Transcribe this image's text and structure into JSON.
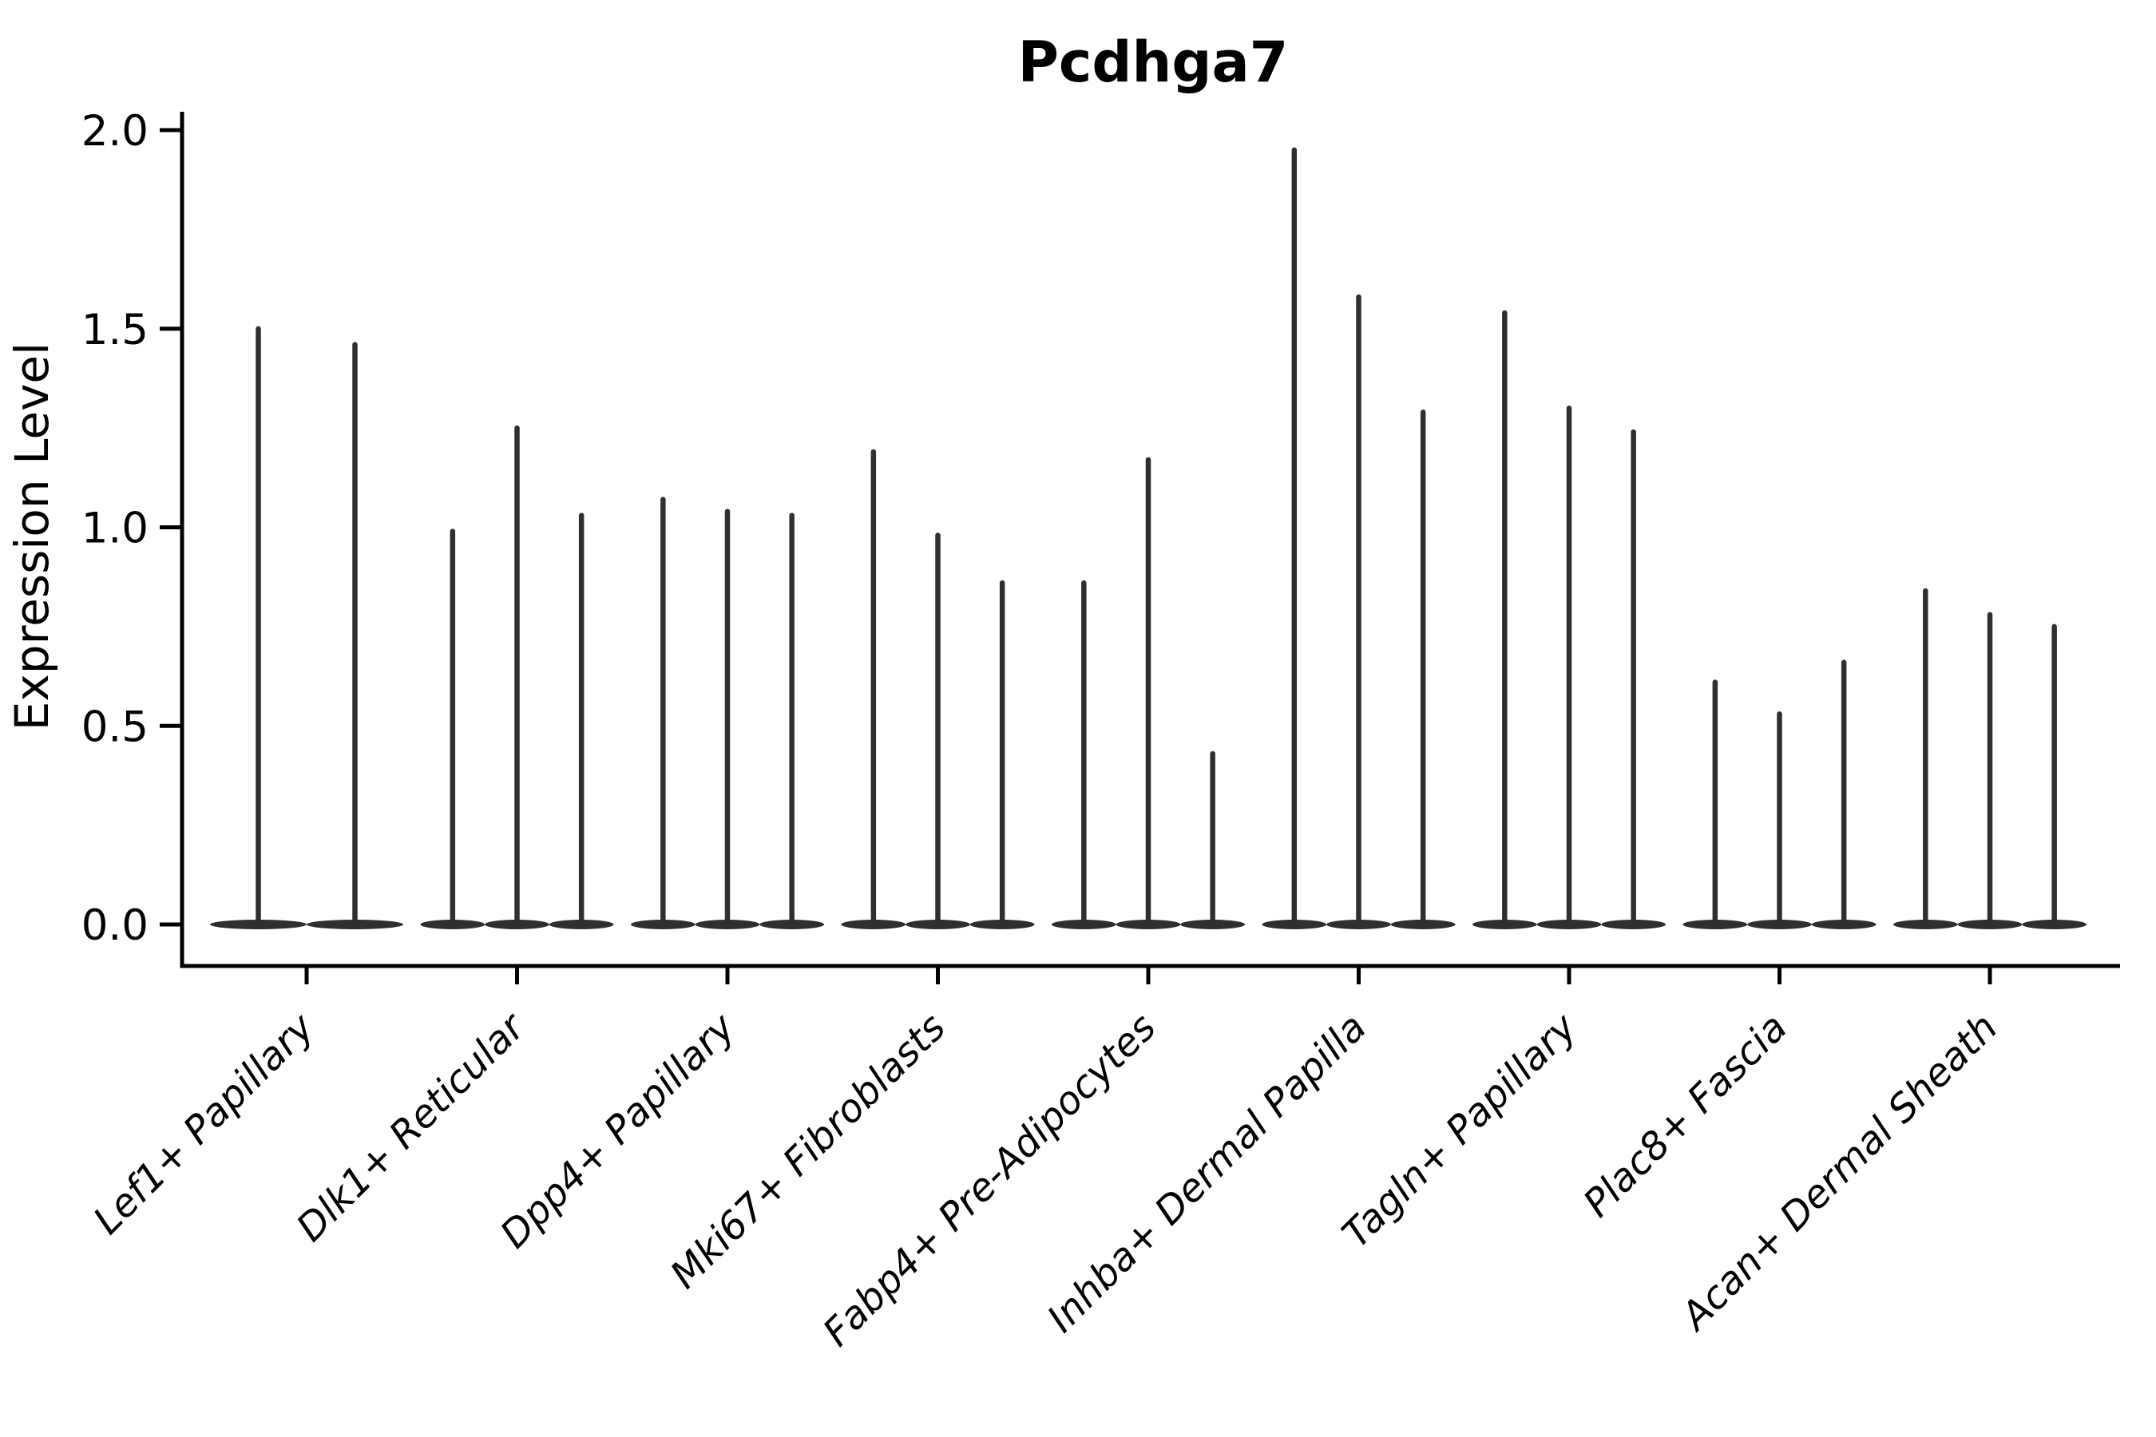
{
  "title": "Pcdhga7",
  "y_axis": {
    "label": "Expression Level",
    "tick_labels": [
      "0.0",
      "0.5",
      "1.0",
      "1.5",
      "2.0"
    ],
    "tick_values": [
      0.0,
      0.5,
      1.0,
      1.5,
      2.0
    ],
    "min": 0.0,
    "max": 2.0
  },
  "chart_data": {
    "type": "violin",
    "title": "Pcdhga7",
    "xlabel": "",
    "ylabel": "Expression Level",
    "ylim": [
      0.0,
      2.0
    ],
    "yticks": [
      0.0,
      0.5,
      1.0,
      1.5,
      2.0
    ],
    "ytick_labels": [
      "0.0",
      "0.5",
      "1.0",
      "1.5",
      "2.0"
    ],
    "grid": false,
    "legend": "none",
    "description": "Grouped violin plot; each violin is a wide flat density bulge at expression 0 with a thin spike reaching the maximum expression value.",
    "categories": [
      "Lef1+ Papillary",
      "Dlk1+ Reticular",
      "Dpp4+ Papillary",
      "Mki67+ Fibroblasts",
      "Fabp4+ Pre-Adipocytes",
      "Inhba+ Dermal Papilla",
      "Tagln+ Papillary",
      "Plac8+ Fascia",
      "Acan+ Dermal Sheath"
    ],
    "series": [
      {
        "category": "Lef1+ Papillary",
        "violin_maxima": [
          1.5,
          1.46
        ]
      },
      {
        "category": "Dlk1+ Reticular",
        "violin_maxima": [
          0.99,
          1.25,
          1.03
        ]
      },
      {
        "category": "Dpp4+ Papillary",
        "violin_maxima": [
          1.07,
          1.04,
          1.03
        ]
      },
      {
        "category": "Mki67+ Fibroblasts",
        "violin_maxima": [
          1.19,
          0.98,
          0.86
        ]
      },
      {
        "category": "Fabp4+ Pre-Adipocytes",
        "violin_maxima": [
          0.86,
          1.17,
          0.43
        ]
      },
      {
        "category": "Inhba+ Dermal Papilla",
        "violin_maxima": [
          1.95,
          1.58,
          1.29
        ]
      },
      {
        "category": "Tagln+ Papillary",
        "violin_maxima": [
          1.54,
          1.3,
          1.24
        ]
      },
      {
        "category": "Plac8+ Fascia",
        "violin_maxima": [
          0.61,
          0.53,
          0.66
        ]
      },
      {
        "category": "Acan+ Dermal Sheath",
        "violin_maxima": [
          0.84,
          0.78,
          0.75
        ]
      }
    ]
  },
  "style": {
    "violin_color": "#2f2f2f",
    "axis_color": "#000000",
    "background": "#ffffff"
  }
}
